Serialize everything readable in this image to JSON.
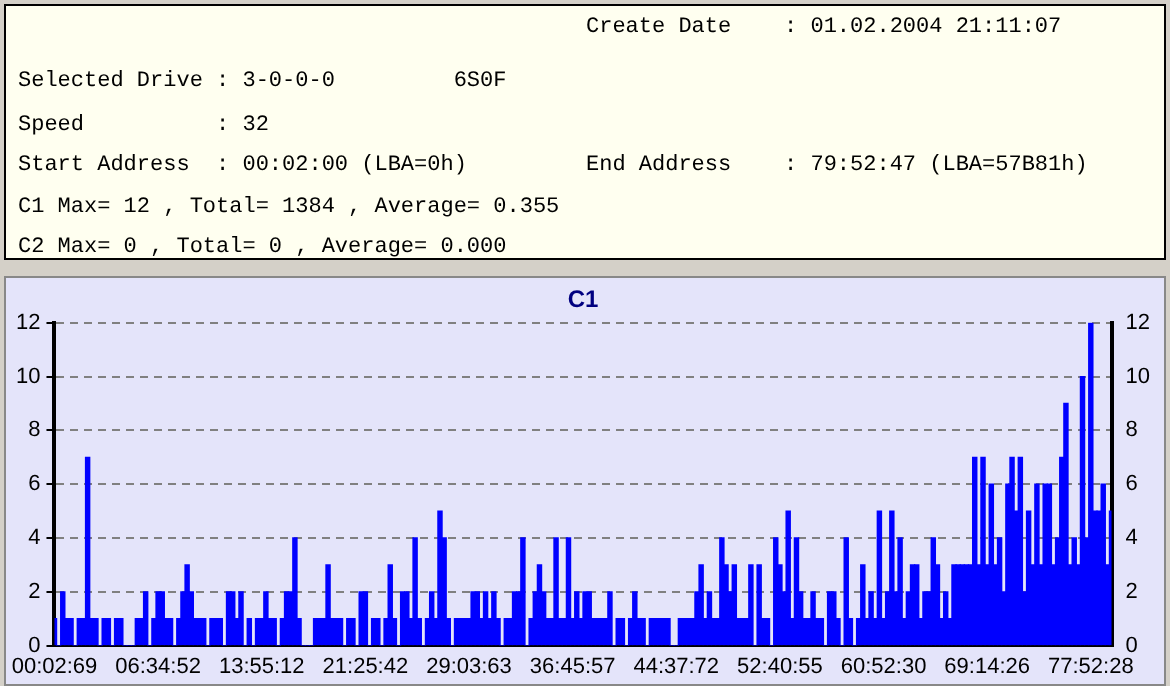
{
  "chart_data": {
    "type": "bar",
    "title": "C1",
    "annotations": [
      "Create Date    : 01.02.2004 21:11:07",
      "Selected Drive : 3-0-0-0         6S0F",
      "Speed          : 32",
      "Start Address  : 00:02:00 (LBA=0h)",
      "End Address    : 79:52:47 (LBA=57B81h)",
      "C1 Max= 12 , Total= 1384 , Average= 0.355",
      "C2 Max= 0 , Total= 0 , Average= 0.000"
    ],
    "categories": [
      "00:02:69",
      null,
      null,
      null,
      null,
      null,
      null,
      null,
      null,
      null,
      null,
      null,
      null,
      null,
      null,
      null,
      null,
      null,
      null,
      null,
      null,
      null,
      null,
      null,
      null,
      "06:34:52",
      null,
      null,
      null,
      null,
      null,
      null,
      null,
      null,
      null,
      null,
      null,
      null,
      null,
      null,
      null,
      null,
      null,
      null,
      null,
      null,
      null,
      null,
      null,
      null,
      "13:55:12",
      null,
      null,
      null,
      null,
      null,
      null,
      null,
      null,
      null,
      null,
      null,
      null,
      null,
      null,
      null,
      null,
      null,
      null,
      null,
      null,
      null,
      null,
      null,
      null,
      "21:25:42",
      null,
      null,
      null,
      null,
      null,
      null,
      null,
      null,
      null,
      null,
      null,
      null,
      null,
      null,
      null,
      null,
      null,
      null,
      null,
      null,
      null,
      null,
      null,
      null,
      "29:03:63",
      null,
      null,
      null,
      null,
      null,
      null,
      null,
      null,
      null,
      null,
      null,
      null,
      null,
      null,
      null,
      null,
      null,
      null,
      null,
      null,
      null,
      null,
      null,
      null,
      "36:45:57",
      null,
      null,
      null,
      null,
      null,
      null,
      null,
      null,
      null,
      null,
      null,
      null,
      null,
      null,
      null,
      null,
      null,
      null,
      null,
      null,
      null,
      null,
      null,
      null,
      "44:37:72",
      null,
      null,
      null,
      null,
      null,
      null,
      null,
      null,
      null,
      null,
      null,
      null,
      null,
      null,
      null,
      null,
      null,
      null,
      null,
      null,
      null,
      null,
      null,
      null,
      "52:40:55",
      null,
      null,
      null,
      null,
      null,
      null,
      null,
      null,
      null,
      null,
      null,
      null,
      null,
      null,
      null,
      null,
      null,
      null,
      null,
      null,
      null,
      null,
      null,
      null,
      "60:52:30",
      null,
      null,
      null,
      null,
      null,
      null,
      null,
      null,
      null,
      null,
      null,
      null,
      null,
      null,
      null,
      null,
      null,
      null,
      null,
      null,
      null,
      null,
      null,
      null,
      "69:14:26",
      null,
      null,
      null,
      null,
      null,
      null,
      null,
      null,
      null,
      null,
      null,
      null,
      null,
      null,
      null,
      null,
      null,
      null,
      null,
      null,
      null,
      null,
      null,
      null,
      "77:52:28",
      null,
      null,
      null,
      null,
      null
    ],
    "values": [
      1,
      0,
      2,
      1,
      1,
      0,
      1,
      1,
      7,
      1,
      1,
      0,
      1,
      1,
      0,
      1,
      1,
      0,
      0,
      0,
      1,
      1,
      2,
      0,
      1,
      2,
      2,
      1,
      1,
      0,
      1,
      2,
      3,
      2,
      1,
      1,
      1,
      0,
      1,
      1,
      1,
      0,
      2,
      2,
      1,
      2,
      0,
      1,
      0,
      1,
      1,
      2,
      1,
      1,
      0,
      1,
      2,
      2,
      4,
      1,
      0,
      0,
      0,
      1,
      1,
      1,
      3,
      1,
      1,
      1,
      0,
      1,
      1,
      0,
      2,
      2,
      0,
      1,
      1,
      0,
      1,
      3,
      1,
      0,
      2,
      2,
      1,
      4,
      1,
      0,
      1,
      2,
      1,
      5,
      4,
      1,
      0,
      1,
      1,
      1,
      1,
      2,
      2,
      1,
      2,
      1,
      2,
      1,
      0,
      1,
      1,
      2,
      2,
      4,
      0,
      1,
      2,
      3,
      2,
      1,
      1,
      4,
      1,
      1,
      4,
      1,
      2,
      1,
      2,
      2,
      1,
      1,
      1,
      1,
      2,
      0,
      1,
      1,
      0,
      1,
      2,
      1,
      1,
      0,
      1,
      1,
      1,
      1,
      1,
      0,
      0,
      1,
      1,
      1,
      1,
      2,
      3,
      1,
      2,
      1,
      1,
      4,
      3,
      2,
      3,
      1,
      1,
      1,
      3,
      0,
      3,
      1,
      1,
      0,
      4,
      3,
      2,
      5,
      1,
      4,
      2,
      1,
      1,
      2,
      1,
      1,
      0,
      2,
      2,
      1,
      0,
      4,
      1,
      0,
      1,
      3,
      1,
      2,
      1,
      5,
      1,
      2,
      5,
      2,
      4,
      1,
      2,
      3,
      3,
      1,
      2,
      2,
      4,
      3,
      1,
      2,
      1,
      3,
      3,
      3,
      3,
      3,
      7,
      3,
      7,
      3,
      6,
      3,
      4,
      2,
      6,
      7,
      5,
      7,
      2,
      5,
      3,
      6,
      3,
      6,
      6,
      3,
      4,
      7,
      9,
      3,
      4,
      3,
      10,
      4,
      12,
      5,
      5,
      6,
      3,
      5
    ],
    "color": "#0000ff",
    "ylim": [
      0,
      12
    ],
    "yticks": [
      0,
      2,
      4,
      6,
      8,
      10,
      12
    ],
    "y2lim": [
      0,
      12
    ],
    "y2ticks": [
      0,
      2,
      4,
      6,
      8,
      10,
      12
    ],
    "grid": "y",
    "legend": false
  }
}
